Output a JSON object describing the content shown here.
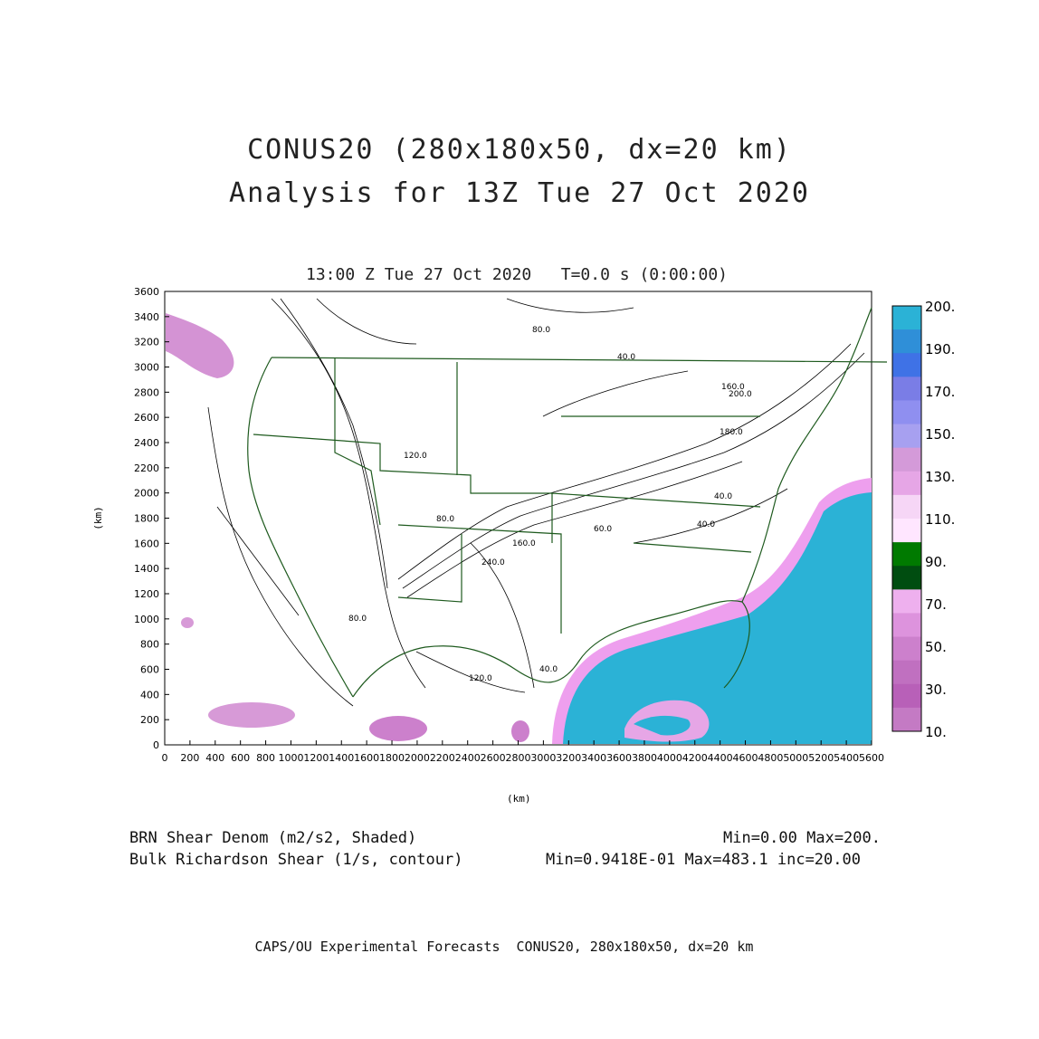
{
  "title": {
    "line1": "CONUS20 (280x180x50, dx=20 km)",
    "line2": "Analysis for 13Z Tue 27 Oct 2020"
  },
  "subtitle": "13:00 Z Tue 27 Oct 2020   T=0.0 s (0:00:00)",
  "axes": {
    "x_unit": "(km)",
    "y_unit": "(km)",
    "x_ticks": [
      "0",
      "200",
      "400",
      "600",
      "800",
      "1000",
      "1200",
      "1400",
      "1600",
      "1800",
      "2000",
      "2200",
      "2400",
      "2600",
      "2800",
      "3000",
      "3200",
      "3400",
      "3600",
      "3800",
      "4000",
      "4200",
      "4400",
      "4600",
      "4800",
      "5000",
      "5200",
      "5400",
      "5600"
    ],
    "y_ticks": [
      "0",
      "200",
      "400",
      "600",
      "800",
      "1000",
      "1200",
      "1400",
      "1600",
      "1800",
      "2000",
      "2200",
      "2400",
      "2600",
      "2800",
      "3000",
      "3200",
      "3400",
      "3600"
    ],
    "x_range": [
      0,
      5600
    ],
    "y_range": [
      0,
      3600
    ]
  },
  "colorbar": {
    "labels": [
      "200.",
      "190.",
      "170.",
      "150.",
      "130.",
      "110.",
      "90.",
      "70.",
      "50.",
      "30.",
      "10."
    ],
    "colors": [
      "#2bb2d6",
      "#2f8fd8",
      "#3f72e6",
      "#7a7de6",
      "#8f8ff0",
      "#a7a0f0",
      "#d49ad9",
      "#e6a6e6",
      "#f6d6f6",
      "#ffe6ff",
      "#007a00",
      "#004d10",
      "#eeb0ee",
      "#dd93dd",
      "#cc80cc",
      "#c070c0",
      "#b860b8",
      "#c47ac4"
    ]
  },
  "contour_labels": [
    {
      "text": "80.0"
    },
    {
      "text": "40.0"
    },
    {
      "text": "160.0"
    },
    {
      "text": "200.0"
    },
    {
      "text": "180.0"
    },
    {
      "text": "120.0"
    },
    {
      "text": "80.0"
    },
    {
      "text": "160.0"
    },
    {
      "text": "240.0"
    },
    {
      "text": "40.0"
    },
    {
      "text": "60.0"
    },
    {
      "text": "80.0"
    },
    {
      "text": "40.0"
    },
    {
      "text": "120.0"
    },
    {
      "text": "40.0"
    }
  ],
  "legend": {
    "shaded_label": "BRN Shear Denom (m2/s2, Shaded)",
    "shaded_stats": "Min=0.00 Max=200.",
    "contour_label": "Bulk Richardson Shear (1/s, contour)",
    "contour_stats": "Min=0.9418E-01 Max=483.1 inc=20.00"
  },
  "credit": "CAPS/OU Experimental Forecasts  CONUS20, 280x180x50, dx=20 km"
}
